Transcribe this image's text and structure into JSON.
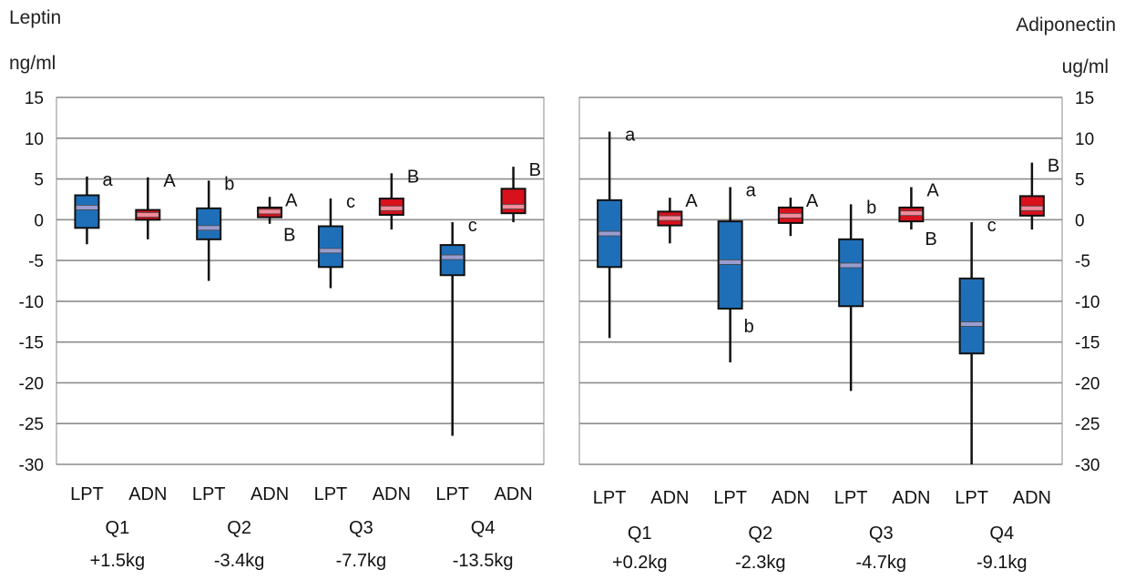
{
  "chart_data": [
    {
      "type": "box",
      "title": "Leptin",
      "ylabel": "ng/ml",
      "ylim": [
        -30,
        15
      ],
      "yticks": [
        15,
        10,
        5,
        0,
        -5,
        -10,
        -15,
        -20,
        -25,
        -30
      ],
      "axis_side": "left",
      "grid": true,
      "colors": {
        "LPT": "#1f6fb8",
        "ADN": "#d8111d"
      },
      "groups": [
        {
          "name": "Q1",
          "change": "+1.5kg",
          "boxes": [
            {
              "label": "LPT",
              "min": -3,
              "q1": -1,
              "median": 1.5,
              "q3": 3,
              "max": 5.3,
              "letter": "a"
            },
            {
              "label": "ADN",
              "min": -2.4,
              "q1": 0,
              "median": 0.6,
              "q3": 1.2,
              "max": 5.2,
              "letter": "A"
            }
          ]
        },
        {
          "name": "Q2",
          "change": "-3.4kg",
          "boxes": [
            {
              "label": "LPT",
              "min": -7.5,
              "q1": -2.4,
              "median": -1,
              "q3": 1.4,
              "max": 4.8,
              "letter": "b"
            },
            {
              "label": "ADN",
              "min": -0.5,
              "q1": 0.3,
              "median": 1,
              "q3": 1.5,
              "max": 2.8,
              "letter": "A",
              "letter2": "B"
            }
          ]
        },
        {
          "name": "Q3",
          "change": "-7.7kg",
          "boxes": [
            {
              "label": "LPT",
              "min": -8.4,
              "q1": -5.8,
              "median": -3.8,
              "q3": -0.8,
              "max": 2.6,
              "letter": "c"
            },
            {
              "label": "ADN",
              "min": -1.2,
              "q1": 0.6,
              "median": 1.4,
              "q3": 2.6,
              "max": 5.7,
              "letter": "B"
            }
          ]
        },
        {
          "name": "Q4",
          "change": "-13.5kg",
          "boxes": [
            {
              "label": "LPT",
              "min": -26.5,
              "q1": -6.8,
              "median": -4.6,
              "q3": -3.1,
              "max": -0.3,
              "letter": "c"
            },
            {
              "label": "ADN",
              "min": -0.3,
              "q1": 0.8,
              "median": 1.6,
              "q3": 3.8,
              "max": 6.5,
              "letter": "B"
            }
          ]
        }
      ]
    },
    {
      "type": "box",
      "title": "Adiponectin",
      "ylabel": "ug/ml",
      "ylim": [
        -30,
        15
      ],
      "yticks": [
        15,
        10,
        5,
        0,
        -5,
        -10,
        -15,
        -20,
        -25,
        -30
      ],
      "axis_side": "right",
      "grid": true,
      "colors": {
        "LPT": "#1f6fb8",
        "ADN": "#d8111d"
      },
      "groups": [
        {
          "name": "Q1",
          "change": "+0.2kg",
          "boxes": [
            {
              "label": "LPT",
              "min": -14.5,
              "q1": -5.8,
              "median": -1.7,
              "q3": 2.4,
              "max": 10.8,
              "letter": "a"
            },
            {
              "label": "ADN",
              "min": -2.9,
              "q1": -0.7,
              "median": 0.2,
              "q3": 1,
              "max": 2.7,
              "letter": "A"
            }
          ]
        },
        {
          "name": "Q2",
          "change": "-2.3kg",
          "boxes": [
            {
              "label": "LPT",
              "min": -17.5,
              "q1": -10.9,
              "median": -5.2,
              "q3": -0.2,
              "max": 4,
              "letter": "a",
              "letter2": "b"
            },
            {
              "label": "ADN",
              "min": -2,
              "q1": -0.4,
              "median": 0.5,
              "q3": 1.5,
              "max": 2.7,
              "letter": "A"
            }
          ]
        },
        {
          "name": "Q3",
          "change": "-4.7kg",
          "boxes": [
            {
              "label": "LPT",
              "min": -21,
              "q1": -10.6,
              "median": -5.6,
              "q3": -2.4,
              "max": 1.9,
              "letter": "b"
            },
            {
              "label": "ADN",
              "min": -1.2,
              "q1": -0.2,
              "median": 0.8,
              "q3": 1.5,
              "max": 4,
              "letter": "A",
              "letter2": "B"
            }
          ]
        },
        {
          "name": "Q4",
          "change": "-9.1kg",
          "boxes": [
            {
              "label": "LPT",
              "min": -30,
              "q1": -16.4,
              "median": -12.8,
              "q3": -7.2,
              "max": -0.3,
              "letter": "c"
            },
            {
              "label": "ADN",
              "min": -1.2,
              "q1": 0.5,
              "median": 1.4,
              "q3": 2.9,
              "max": 7,
              "letter": "B"
            }
          ]
        }
      ]
    }
  ]
}
